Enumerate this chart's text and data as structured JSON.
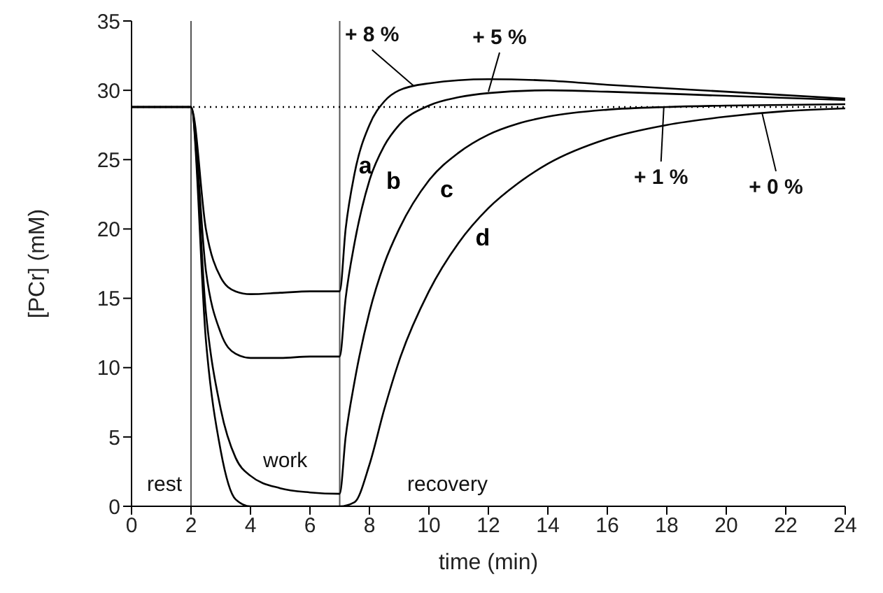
{
  "chart_data": {
    "type": "line",
    "xlabel": "time (min)",
    "ylabel": "[PCr] (mM)",
    "xlim": [
      0,
      24
    ],
    "xticks": [
      0,
      2,
      4,
      6,
      8,
      10,
      12,
      14,
      16,
      18,
      20,
      22,
      24
    ],
    "ylim": [
      0,
      35
    ],
    "yticks": [
      0,
      5,
      10,
      15,
      20,
      25,
      30,
      35
    ],
    "grid": false,
    "marker": "none",
    "line_style": "solid",
    "series": [
      {
        "name": "a",
        "color": "#000000",
        "x": [
          0,
          2,
          2.5,
          3,
          3.5,
          4,
          5,
          6,
          7,
          7.2,
          7.5,
          8,
          8.5,
          9,
          10,
          12,
          14,
          16,
          20,
          24
        ],
        "values": [
          28.8,
          28.8,
          20,
          16.5,
          15.5,
          15.3,
          15.4,
          15.5,
          15.5,
          20,
          24,
          27.5,
          29.2,
          30,
          30.5,
          30.8,
          30.7,
          30.4,
          29.9,
          29.4
        ]
      },
      {
        "name": "b",
        "color": "#000000",
        "x": [
          0,
          2,
          2.5,
          3,
          3.5,
          4,
          5,
          6,
          7,
          7.2,
          7.5,
          8,
          8.5,
          9,
          10,
          11,
          12,
          14,
          16,
          20,
          24
        ],
        "values": [
          28.8,
          28.8,
          17,
          12.5,
          11,
          10.7,
          10.7,
          10.8,
          10.8,
          15,
          19,
          23.5,
          26,
          27.5,
          28.9,
          29.5,
          29.8,
          30,
          29.9,
          29.6,
          29.3
        ]
      },
      {
        "name": "c",
        "color": "#000000",
        "x": [
          0,
          2,
          2.5,
          3,
          3.5,
          4,
          5,
          6,
          7,
          7.2,
          7.5,
          8,
          8.5,
          9,
          10,
          11,
          12,
          13,
          14,
          16,
          18,
          20,
          24
        ],
        "values": [
          28.8,
          28.8,
          14,
          7,
          3.5,
          2.2,
          1.3,
          1,
          0.9,
          5,
          9,
          14,
          17.5,
          20,
          23.5,
          25.5,
          26.8,
          27.6,
          28.1,
          28.6,
          28.8,
          28.9,
          29
        ]
      },
      {
        "name": "d",
        "color": "#000000",
        "x": [
          0,
          2,
          2.5,
          3,
          3.5,
          4,
          5,
          6,
          7,
          7.5,
          8,
          8.5,
          9,
          10,
          11,
          12,
          13,
          14,
          16,
          18,
          20,
          22,
          24
        ],
        "values": [
          28.8,
          28.8,
          12,
          4,
          0.5,
          0,
          0,
          0,
          0,
          0.3,
          3,
          7,
          10.5,
          15.5,
          19,
          21.5,
          23.3,
          24.7,
          26.5,
          27.5,
          28.1,
          28.5,
          28.7
        ]
      }
    ],
    "ref_lines": [
      {
        "axis": "x",
        "value": 2,
        "color": "#555555",
        "line_style": "solid"
      },
      {
        "axis": "x",
        "value": 7,
        "color": "#555555",
        "line_style": "solid"
      },
      {
        "axis": "y",
        "value": 28.8,
        "color": "#000000",
        "line_style": "dotted"
      }
    ],
    "annotations": [
      {
        "text": "+ 8 %",
        "x": 9.5,
        "y": 30.3
      },
      {
        "text": "+ 5 %",
        "x": 12,
        "y": 29.9
      },
      {
        "text": "+ 1 %",
        "x": 17.9,
        "y": 28.8
      },
      {
        "text": "+ 0 %",
        "x": 21.2,
        "y": 28.4
      },
      "rest",
      "work",
      "recovery"
    ]
  }
}
